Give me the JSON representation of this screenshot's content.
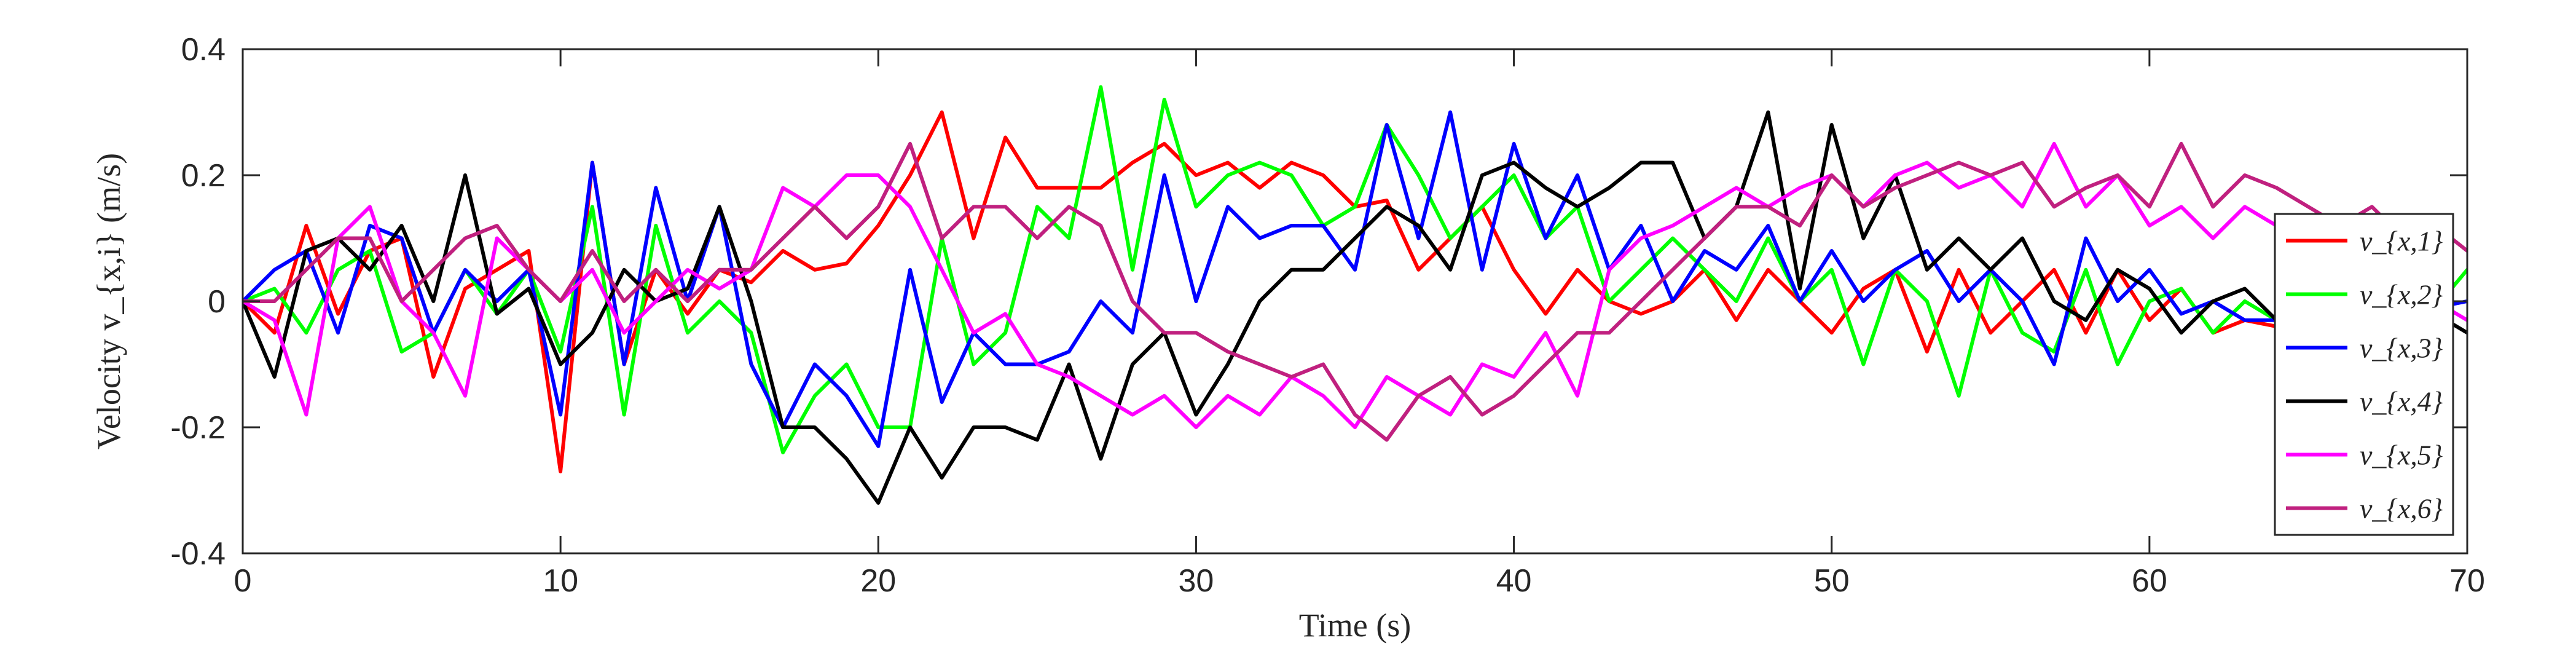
{
  "chart_data": {
    "type": "line",
    "title": "",
    "xlabel": "Time (s)",
    "ylabel": "Velocity v_{x,i} (m/s)",
    "xlim": [
      0,
      70
    ],
    "ylim": [
      -0.4,
      0.4
    ],
    "xticks": [
      "0",
      "10",
      "20",
      "30",
      "40",
      "50",
      "60",
      "70"
    ],
    "yticks": [
      "0.4",
      "0.2",
      "0",
      "-0.2",
      "-0.4"
    ],
    "grid": false,
    "legend_position": "right",
    "series": [
      {
        "name": "v_{x,1}",
        "color": "#ff0000",
        "x": [
          0,
          1,
          2,
          3,
          4,
          5,
          6,
          7,
          8,
          9,
          10,
          11,
          12,
          13,
          14,
          15,
          16,
          17,
          18,
          19,
          20,
          21,
          22,
          23,
          24,
          25,
          26,
          27,
          28,
          29,
          30,
          31,
          32,
          33,
          34,
          35,
          36,
          37,
          38,
          39,
          40,
          41,
          42,
          43,
          44,
          45,
          46,
          47,
          48,
          49,
          50,
          51,
          52,
          53,
          54,
          55,
          56,
          57,
          58,
          59,
          60,
          61,
          62,
          63,
          64
        ],
        "y": [
          0,
          -0.05,
          0.12,
          -0.02,
          0.08,
          0.1,
          -0.12,
          0.02,
          0.05,
          0.08,
          -0.27,
          0.22,
          -0.1,
          0.05,
          -0.02,
          0.05,
          0.03,
          0.08,
          0.05,
          0.06,
          0.12,
          0.2,
          0.3,
          0.1,
          0.26,
          0.18,
          0.18,
          0.18,
          0.22,
          0.25,
          0.2,
          0.22,
          0.18,
          0.22,
          0.2,
          0.15,
          0.16,
          0.05,
          0.1,
          0.15,
          0.05,
          -0.02,
          0.05,
          0.0,
          -0.02,
          0.0,
          0.05,
          -0.03,
          0.05,
          0.0,
          -0.05,
          0.02,
          0.05,
          -0.08,
          0.05,
          -0.05,
          0.0,
          0.05,
          -0.05,
          0.05,
          -0.03,
          0.02,
          -0.05,
          -0.03,
          -0.04
        ]
      },
      {
        "name": "v_{x,2}",
        "color": "#00ff00",
        "x": [
          0,
          1,
          2,
          3,
          4,
          5,
          6,
          7,
          8,
          9,
          10,
          11,
          12,
          13,
          14,
          15,
          16,
          17,
          18,
          19,
          20,
          21,
          22,
          23,
          24,
          25,
          26,
          27,
          28,
          29,
          30,
          31,
          32,
          33,
          34,
          35,
          36,
          37,
          38,
          39,
          40,
          41,
          42,
          43,
          44,
          45,
          46,
          47,
          48,
          49,
          50,
          51,
          52,
          53,
          54,
          55,
          56,
          57,
          58,
          59,
          60,
          61,
          62,
          63,
          64,
          65,
          66,
          67,
          68,
          69,
          70
        ],
        "y": [
          0,
          0.02,
          -0.05,
          0.05,
          0.08,
          -0.08,
          -0.05,
          0.05,
          -0.02,
          0.05,
          -0.08,
          0.15,
          -0.18,
          0.12,
          -0.05,
          0.0,
          -0.05,
          -0.24,
          -0.15,
          -0.1,
          -0.2,
          -0.2,
          0.1,
          -0.1,
          -0.05,
          0.15,
          0.1,
          0.34,
          0.05,
          0.32,
          0.15,
          0.2,
          0.22,
          0.2,
          0.12,
          0.15,
          0.28,
          0.2,
          0.1,
          0.15,
          0.2,
          0.1,
          0.15,
          0.0,
          0.05,
          0.1,
          0.05,
          0.0,
          0.1,
          0.0,
          0.05,
          -0.1,
          0.05,
          0.0,
          -0.15,
          0.05,
          -0.05,
          -0.08,
          0.05,
          -0.1,
          0.0,
          0.02,
          -0.05,
          0.0,
          -0.03,
          0.02,
          -0.02,
          0.0,
          0.02,
          -0.01,
          0.05
        ]
      },
      {
        "name": "v_{x,3}",
        "color": "#0000ff",
        "x": [
          0,
          1,
          2,
          3,
          4,
          5,
          6,
          7,
          8,
          9,
          10,
          11,
          12,
          13,
          14,
          15,
          16,
          17,
          18,
          19,
          20,
          21,
          22,
          23,
          24,
          25,
          26,
          27,
          28,
          29,
          30,
          31,
          32,
          33,
          34,
          35,
          36,
          37,
          38,
          39,
          40,
          41,
          42,
          43,
          44,
          45,
          46,
          47,
          48,
          49,
          50,
          51,
          52,
          53,
          54,
          55,
          56,
          57,
          58,
          59,
          60,
          61,
          62,
          63,
          64,
          65,
          66,
          67,
          68,
          69,
          70
        ],
        "y": [
          0,
          0.05,
          0.08,
          -0.05,
          0.12,
          0.1,
          -0.05,
          0.05,
          0.0,
          0.05,
          -0.18,
          0.22,
          -0.1,
          0.18,
          0.0,
          0.15,
          -0.1,
          -0.2,
          -0.1,
          -0.15,
          -0.23,
          0.05,
          -0.16,
          -0.05,
          -0.1,
          -0.1,
          -0.08,
          0.0,
          -0.05,
          0.2,
          0.0,
          0.15,
          0.1,
          0.12,
          0.12,
          0.05,
          0.28,
          0.1,
          0.3,
          0.05,
          0.25,
          0.1,
          0.2,
          0.05,
          0.12,
          0.0,
          0.08,
          0.05,
          0.12,
          0.0,
          0.08,
          0.0,
          0.05,
          0.08,
          0.0,
          0.05,
          0.0,
          -0.1,
          0.1,
          0.0,
          0.05,
          -0.02,
          0.0,
          -0.03,
          -0.03,
          0.0,
          -0.02,
          0.02,
          0.0,
          -0.01,
          0.0
        ]
      },
      {
        "name": "v_{x,4}",
        "color": "#000000",
        "x": [
          0,
          1,
          2,
          3,
          4,
          5,
          6,
          7,
          8,
          9,
          10,
          11,
          12,
          13,
          14,
          15,
          16,
          17,
          18,
          19,
          20,
          21,
          22,
          23,
          24,
          25,
          26,
          27,
          28,
          29,
          30,
          31,
          32,
          33,
          34,
          35,
          36,
          37,
          38,
          39,
          40,
          41,
          42,
          43,
          44,
          45,
          46,
          47,
          48,
          49,
          50,
          51,
          52,
          53,
          54,
          55,
          56,
          57,
          58,
          59,
          60,
          61,
          62,
          63,
          64,
          65,
          66,
          67,
          68,
          69,
          70
        ],
        "y": [
          0,
          -0.12,
          0.08,
          0.1,
          0.05,
          0.12,
          0.0,
          0.2,
          -0.02,
          0.02,
          -0.1,
          -0.05,
          0.05,
          0.0,
          0.02,
          0.15,
          0.0,
          -0.2,
          -0.2,
          -0.25,
          -0.32,
          -0.2,
          -0.28,
          -0.2,
          -0.2,
          -0.22,
          -0.1,
          -0.25,
          -0.1,
          -0.05,
          -0.18,
          -0.1,
          0.0,
          0.05,
          0.05,
          0.1,
          0.15,
          0.12,
          0.05,
          0.2,
          0.22,
          0.18,
          0.15,
          0.18,
          0.22,
          0.22,
          0.1,
          0.15,
          0.3,
          0.02,
          0.28,
          0.1,
          0.2,
          0.05,
          0.1,
          0.05,
          0.1,
          0.0,
          -0.03,
          0.05,
          0.02,
          -0.05,
          0.0,
          0.02,
          -0.03,
          0.0,
          0.01,
          -0.01,
          0.0,
          -0.02,
          -0.05
        ]
      },
      {
        "name": "v_{x,5}",
        "color": "#ff00ff",
        "x": [
          0,
          1,
          2,
          3,
          4,
          5,
          6,
          7,
          8,
          9,
          10,
          11,
          12,
          13,
          14,
          15,
          16,
          17,
          18,
          19,
          20,
          21,
          22,
          23,
          24,
          25,
          26,
          27,
          28,
          29,
          30,
          31,
          32,
          33,
          34,
          35,
          36,
          37,
          38,
          39,
          40,
          41,
          42,
          43,
          44,
          45,
          46,
          47,
          48,
          49,
          50,
          51,
          52,
          53,
          54,
          55,
          56,
          57,
          58,
          59,
          60,
          61,
          62,
          63,
          64,
          65,
          66,
          67,
          68,
          69,
          70
        ],
        "y": [
          0,
          -0.03,
          -0.18,
          0.1,
          0.15,
          0.0,
          -0.05,
          -0.15,
          0.1,
          0.05,
          0.0,
          0.05,
          -0.05,
          0.0,
          0.05,
          0.02,
          0.05,
          0.18,
          0.15,
          0.2,
          0.2,
          0.15,
          0.05,
          -0.05,
          -0.02,
          -0.1,
          -0.12,
          -0.15,
          -0.18,
          -0.15,
          -0.2,
          -0.15,
          -0.18,
          -0.12,
          -0.15,
          -0.2,
          -0.12,
          -0.15,
          -0.18,
          -0.1,
          -0.12,
          -0.05,
          -0.15,
          0.05,
          0.1,
          0.12,
          0.15,
          0.18,
          0.15,
          0.18,
          0.2,
          0.15,
          0.2,
          0.22,
          0.18,
          0.2,
          0.15,
          0.25,
          0.15,
          0.2,
          0.12,
          0.15,
          0.1,
          0.15,
          0.12,
          0.1,
          0.1,
          0.05,
          0.05,
          0.0,
          -0.03
        ]
      },
      {
        "name": "v_{x,6}",
        "color": "#c0207f",
        "x": [
          0,
          1,
          2,
          3,
          4,
          5,
          6,
          7,
          8,
          9,
          10,
          11,
          12,
          13,
          14,
          15,
          16,
          17,
          18,
          19,
          20,
          21,
          22,
          23,
          24,
          25,
          26,
          27,
          28,
          29,
          30,
          31,
          32,
          33,
          34,
          35,
          36,
          37,
          38,
          39,
          40,
          41,
          42,
          43,
          44,
          45,
          46,
          47,
          48,
          49,
          50,
          51,
          52,
          53,
          54,
          55,
          56,
          57,
          58,
          59,
          60,
          61,
          62,
          63,
          64,
          65,
          66,
          67,
          68,
          69,
          70
        ],
        "y": [
          0,
          0.0,
          0.05,
          0.1,
          0.1,
          0.0,
          0.05,
          0.1,
          0.12,
          0.05,
          0.0,
          0.08,
          0.0,
          0.05,
          0.0,
          0.05,
          0.05,
          0.1,
          0.15,
          0.1,
          0.15,
          0.25,
          0.1,
          0.15,
          0.15,
          0.1,
          0.15,
          0.12,
          0.0,
          -0.05,
          -0.05,
          -0.08,
          -0.1,
          -0.12,
          -0.1,
          -0.18,
          -0.22,
          -0.15,
          -0.12,
          -0.18,
          -0.15,
          -0.1,
          -0.05,
          -0.05,
          0.0,
          0.05,
          0.1,
          0.15,
          0.15,
          0.12,
          0.2,
          0.15,
          0.18,
          0.2,
          0.22,
          0.2,
          0.22,
          0.15,
          0.18,
          0.2,
          0.15,
          0.25,
          0.15,
          0.2,
          0.18,
          0.15,
          0.12,
          0.15,
          0.1,
          0.12,
          0.08
        ]
      }
    ]
  }
}
